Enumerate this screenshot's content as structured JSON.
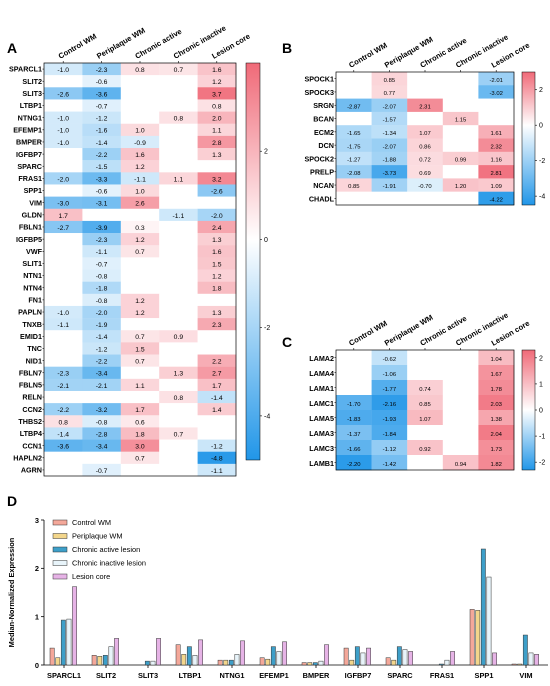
{
  "figure_labels": {
    "A": "A",
    "B": "B",
    "C": "C",
    "D": "D"
  },
  "colors": {
    "negative": "#2196e8",
    "positive": "#f06a78",
    "neutral": "#ffffff",
    "bar_control": "#f4a89a",
    "bar_periplaque": "#f3d68b",
    "bar_active": "#3d9fc9",
    "bar_inactive": "#e8f4fa",
    "bar_core": "#e6b3e6"
  },
  "chart_data": [
    {
      "type": "heatmap",
      "panel": "A",
      "columns": [
        "Control WM",
        "Periplaque WM",
        "Chronic active",
        "Chronic inactive",
        "Lesion core"
      ],
      "rows": [
        "SPARCL1",
        "SLIT2",
        "SLIT3",
        "LTBP1",
        "NTNG1",
        "EFEMP1",
        "BMPER",
        "IGFBP7",
        "SPARC",
        "FRAS1",
        "SPP1",
        "VIM",
        "GLDN",
        "FBLN1",
        "IGFBP5",
        "VWF",
        "SLIT1",
        "NTN1",
        "NTN4",
        "FN1",
        "PAPLN",
        "TNXB",
        "EMID1",
        "TNC",
        "NID1",
        "FBLN7",
        "FBLN5",
        "RELN",
        "CCN2",
        "THBS2",
        "LTBP4",
        "CCN1",
        "HAPLN2",
        "AGRN"
      ],
      "values": [
        [
          -1.0,
          -2.3,
          0.8,
          0.7,
          1.6
        ],
        [
          null,
          -0.6,
          null,
          null,
          1.2
        ],
        [
          -2.6,
          -3.6,
          null,
          null,
          3.7
        ],
        [
          null,
          -0.7,
          null,
          null,
          0.8
        ],
        [
          -1.0,
          -1.2,
          null,
          0.8,
          2.0
        ],
        [
          -1.0,
          -1.6,
          1.0,
          null,
          1.1
        ],
        [
          -1.0,
          -1.4,
          -0.9,
          null,
          2.8
        ],
        [
          null,
          -2.2,
          1.6,
          null,
          1.3
        ],
        [
          null,
          -1.5,
          1.2,
          null,
          null
        ],
        [
          -2.0,
          -3.3,
          -1.1,
          1.1,
          3.2
        ],
        [
          null,
          -0.6,
          1.0,
          null,
          -2.6
        ],
        [
          -3.0,
          -3.1,
          2.6,
          null,
          null
        ],
        [
          1.7,
          null,
          null,
          -1.1,
          -2.0
        ],
        [
          -2.7,
          -3.9,
          0.3,
          null,
          2.4
        ],
        [
          null,
          -2.3,
          1.2,
          null,
          1.3
        ],
        [
          null,
          -1.1,
          0.7,
          null,
          1.6
        ],
        [
          null,
          -0.7,
          null,
          null,
          1.5
        ],
        [
          null,
          -0.8,
          null,
          null,
          1.2
        ],
        [
          null,
          -1.8,
          null,
          null,
          1.8
        ],
        [
          null,
          -0.8,
          1.2,
          null,
          null
        ],
        [
          -1.0,
          -2.0,
          1.2,
          null,
          1.3
        ],
        [
          -1.1,
          -1.9,
          null,
          null,
          2.3
        ],
        [
          null,
          -1.4,
          0.7,
          0.9,
          null
        ],
        [
          null,
          -1.2,
          1.5,
          null,
          null
        ],
        [
          null,
          -2.2,
          0.7,
          null,
          2.2
        ],
        [
          -2.3,
          -3.4,
          null,
          1.3,
          2.7
        ],
        [
          -2.1,
          -2.1,
          1.1,
          null,
          1.7
        ],
        [
          null,
          null,
          null,
          0.8,
          -1.4
        ],
        [
          -2.2,
          -3.2,
          1.7,
          null,
          1.4
        ],
        [
          0.8,
          -0.8,
          0.6,
          null,
          null
        ],
        [
          -1.4,
          -2.8,
          1.8,
          0.7,
          null
        ],
        [
          -3.6,
          -3.4,
          3.0,
          null,
          -1.2
        ],
        [
          null,
          null,
          0.7,
          null,
          -4.8
        ],
        [
          null,
          -0.7,
          null,
          null,
          -1.1
        ]
      ],
      "colorbar_ticks": [
        2,
        0,
        -2,
        -4
      ],
      "colorbar_range": [
        -5,
        4
      ]
    },
    {
      "type": "heatmap",
      "panel": "B",
      "columns": [
        "Control WM",
        "Periplaque WM",
        "Chronic active",
        "Chronic inactive",
        "Lesion core"
      ],
      "rows": [
        "SPOCK1",
        "SPOCK3",
        "SRGN",
        "BCAN",
        "ECM2",
        "DCN",
        "SPOCK2",
        "PRELP",
        "NCAN",
        "CHADL"
      ],
      "values": [
        [
          null,
          "0.85",
          null,
          null,
          "-2.01"
        ],
        [
          null,
          "0.77",
          null,
          null,
          "-3.02"
        ],
        [
          "-2.87",
          "-2.07",
          "2.31",
          null,
          null
        ],
        [
          null,
          "-1.57",
          null,
          "1.15",
          null
        ],
        [
          "-1.65",
          "-1.34",
          "1.07",
          null,
          "1.61"
        ],
        [
          "-1.75",
          "-2.07",
          "0.86",
          null,
          "2.32"
        ],
        [
          "-1.27",
          "-1.88",
          "0.72",
          "0.99",
          "1.16"
        ],
        [
          "-2.08",
          "-3.73",
          "0.69",
          null,
          "2.81"
        ],
        [
          "0.85",
          "-1.91",
          "-0.70",
          "1.20",
          "1.09"
        ],
        [
          null,
          null,
          null,
          null,
          "-4.22"
        ]
      ],
      "colorbar_ticks": [
        2,
        0,
        -2,
        -4
      ],
      "colorbar_range": [
        -4.5,
        3
      ]
    },
    {
      "type": "heatmap",
      "panel": "C",
      "columns": [
        "Control WM",
        "Periplaque WM",
        "Chronic active",
        "Chronic inactive",
        "Lesion core"
      ],
      "rows": [
        "LAMA2",
        "LAMA4",
        "LAMA1",
        "LAMC1",
        "LAMA5",
        "LAMA3",
        "LAMC3",
        "LAMB1"
      ],
      "values": [
        [
          null,
          "-0.62",
          null,
          null,
          "1.04"
        ],
        [
          null,
          "-1.06",
          null,
          null,
          "1.67"
        ],
        [
          null,
          "-1.77",
          "0.74",
          null,
          "1.78"
        ],
        [
          "-1.70",
          "-2.16",
          "0.85",
          null,
          "2.03"
        ],
        [
          "-1.83",
          "-1.93",
          "1.07",
          null,
          "1.38"
        ],
        [
          "-1.37",
          "-1.84",
          null,
          null,
          "2.04"
        ],
        [
          "-1.66",
          "-1.12",
          "0.92",
          null,
          "1.73"
        ],
        [
          "-2.20",
          "-1.42",
          null,
          "0.94",
          "1.82"
        ]
      ],
      "colorbar_ticks": [
        2,
        1,
        0,
        -1,
        -2
      ],
      "colorbar_range": [
        -2.3,
        2.3
      ]
    },
    {
      "type": "bar",
      "panel": "D",
      "categories": [
        "SPARCL1",
        "SLIT2",
        "SLIT3",
        "LTBP1",
        "NTNG1",
        "EFEMP1",
        "BMPER",
        "IGFBP7",
        "SPARC",
        "FRAS1",
        "SPP1",
        "VIM"
      ],
      "series": [
        {
          "name": "Control WM",
          "values": [
            0.35,
            0.2,
            0.0,
            0.42,
            0.1,
            0.15,
            0.05,
            0.35,
            0.15,
            0.0,
            1.15,
            0.02
          ]
        },
        {
          "name": "Periplaque WM",
          "values": [
            0.15,
            0.18,
            0.0,
            0.22,
            0.1,
            0.12,
            0.05,
            0.1,
            0.1,
            0.0,
            1.13,
            0.02
          ]
        },
        {
          "name": "Chronic active lesion",
          "values": [
            0.93,
            0.2,
            0.08,
            0.38,
            0.1,
            0.38,
            0.05,
            0.38,
            0.38,
            0.02,
            2.4,
            0.62
          ]
        },
        {
          "name": "Chronic inactive lesion",
          "values": [
            0.95,
            0.38,
            0.08,
            0.2,
            0.22,
            0.28,
            0.08,
            0.25,
            0.32,
            0.1,
            1.82,
            0.25
          ]
        },
        {
          "name": "Lesion core",
          "values": [
            1.62,
            0.55,
            0.55,
            0.52,
            0.5,
            0.48,
            0.42,
            0.35,
            0.28,
            0.28,
            0.25,
            0.22
          ]
        }
      ],
      "ylabel": "Median-Normalized Expression",
      "ylim": [
        0,
        3
      ],
      "yticks": [
        0,
        1,
        2,
        3
      ]
    }
  ]
}
